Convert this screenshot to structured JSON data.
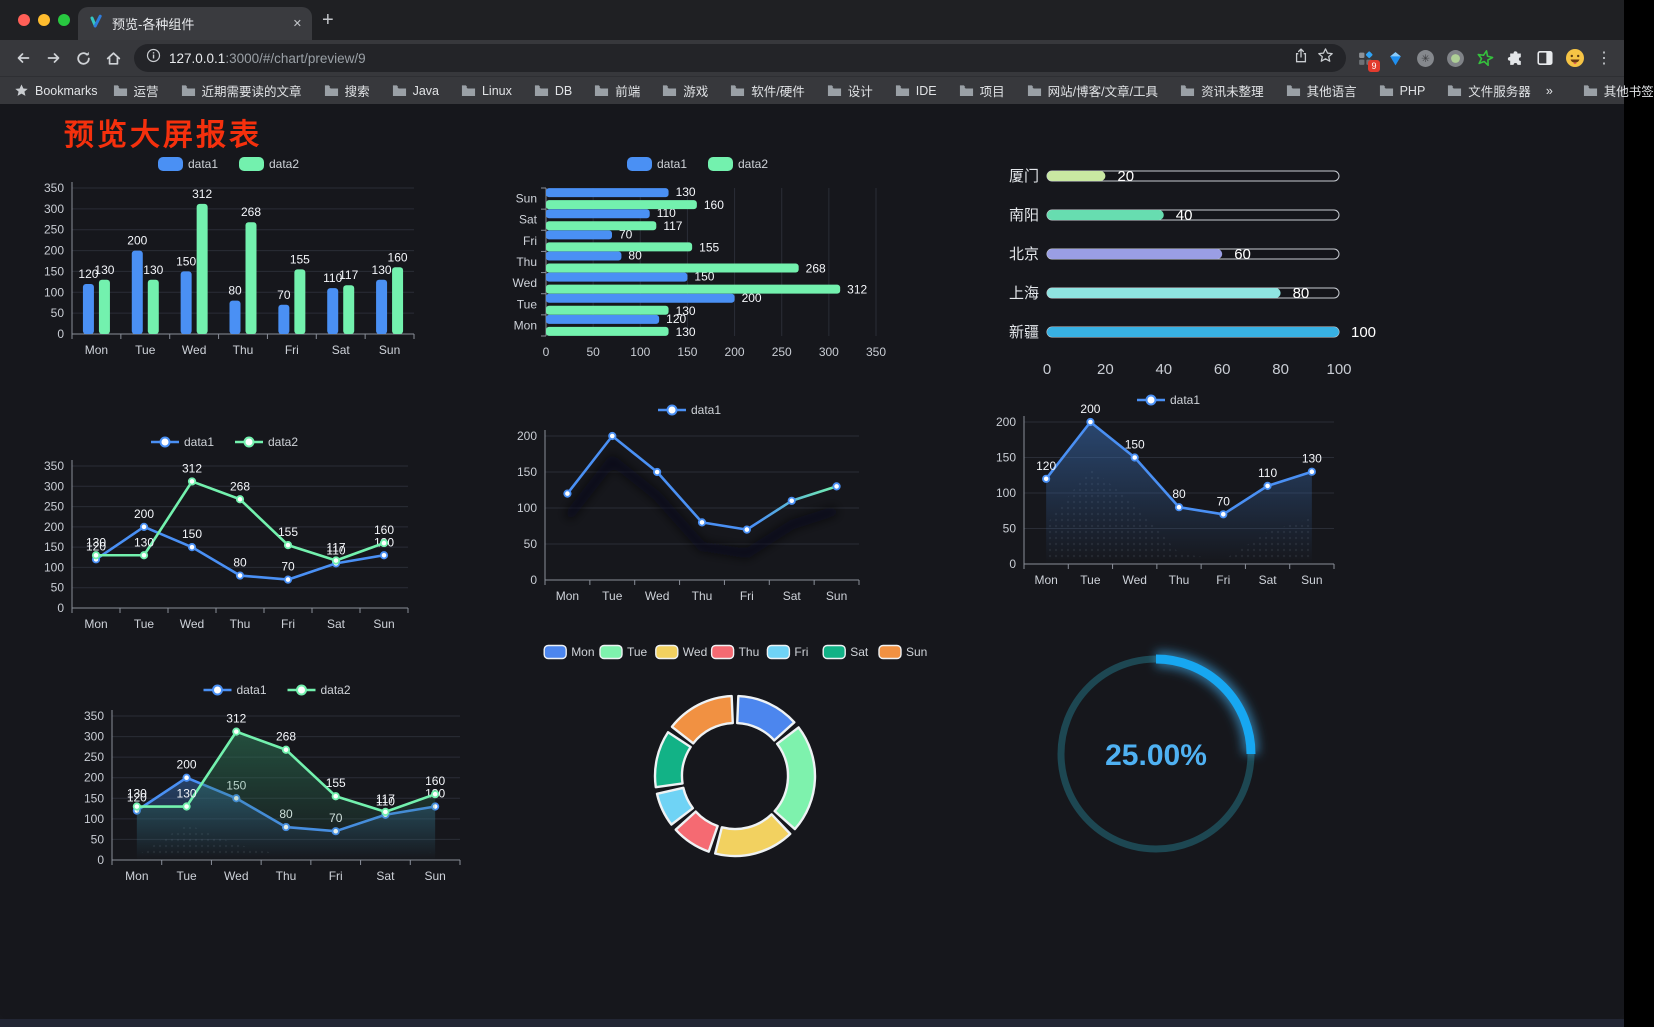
{
  "browser": {
    "tab_title": "预览-各种组件",
    "url_host": "127.0.0.1",
    "url_rest": ":3000/#/chart/preview/9",
    "bookmarks_label": "Bookmarks",
    "bookmarks": [
      "运营",
      "近期需要读的文章",
      "搜索",
      "Java",
      "Linux",
      "DB",
      "前端",
      "游戏",
      "软件/硬件",
      "设计",
      "IDE",
      "项目",
      "网站/博客/文章/工具",
      "资讯未整理",
      "其他语言",
      "PHP",
      "文件服务器"
    ],
    "bookmarks_overflow": "»",
    "other_bookmarks": "其他书签",
    "extension_badge": "9"
  },
  "page": {
    "title": "预览大屏报表",
    "title_color": "#f5300d"
  },
  "chart_data": [
    {
      "id": "c1",
      "type": "bar",
      "categories": [
        "Mon",
        "Tue",
        "Wed",
        "Thu",
        "Fri",
        "Sat",
        "Sun"
      ],
      "series": [
        {
          "name": "data1",
          "color": "#4a90f4",
          "values": [
            120,
            200,
            150,
            80,
            70,
            110,
            130
          ]
        },
        {
          "name": "data2",
          "color": "#73f1ae",
          "values": [
            130,
            130,
            312,
            268,
            155,
            117,
            160
          ]
        }
      ],
      "ylim": [
        0,
        350
      ],
      "yticks": [
        0,
        50,
        100,
        150,
        200,
        250,
        300,
        350
      ],
      "grid": true,
      "legend_position": "top"
    },
    {
      "id": "c2",
      "type": "bar-horizontal",
      "categories": [
        "Mon",
        "Tue",
        "Wed",
        "Thu",
        "Fri",
        "Sat",
        "Sun"
      ],
      "series": [
        {
          "name": "data1",
          "color": "#4a90f4",
          "values": [
            120,
            200,
            150,
            80,
            70,
            110,
            130
          ]
        },
        {
          "name": "data2",
          "color": "#73f1ae",
          "values": [
            130,
            130,
            312,
            268,
            155,
            117,
            160
          ]
        }
      ],
      "xlim": [
        0,
        350
      ],
      "xticks": [
        0,
        50,
        100,
        150,
        200,
        250,
        300,
        350
      ],
      "grid": true,
      "legend_position": "top"
    },
    {
      "id": "c3",
      "type": "progress-bars",
      "items": [
        {
          "label": "厦门",
          "value": 20,
          "color": "#c9e8a2"
        },
        {
          "label": "南阳",
          "value": 40,
          "color": "#67ddb0"
        },
        {
          "label": "北京",
          "value": 60,
          "color": "#9a9ee4"
        },
        {
          "label": "上海",
          "value": 80,
          "color": "#8fe4e1"
        },
        {
          "label": "新疆",
          "value": 100,
          "color": "#38b1e3"
        }
      ],
      "xlim": [
        0,
        100
      ],
      "xticks": [
        0,
        20,
        40,
        60,
        80,
        100
      ]
    },
    {
      "id": "c4",
      "type": "line",
      "categories": [
        "Mon",
        "Tue",
        "Wed",
        "Thu",
        "Fri",
        "Sat",
        "Sun"
      ],
      "series": [
        {
          "name": "data1",
          "color": "#4a90f4",
          "values": [
            120,
            200,
            150,
            80,
            70,
            110,
            130
          ]
        },
        {
          "name": "data2",
          "color": "#73f1ae",
          "values": [
            130,
            130,
            312,
            268,
            155,
            117,
            160
          ]
        }
      ],
      "ylim": [
        0,
        350
      ],
      "yticks": [
        0,
        50,
        100,
        150,
        200,
        250,
        300,
        350
      ],
      "labels": true,
      "grid": true,
      "legend_position": "top"
    },
    {
      "id": "c5",
      "type": "line",
      "categories": [
        "Mon",
        "Tue",
        "Wed",
        "Thu",
        "Fri",
        "Sat",
        "Sun"
      ],
      "series": [
        {
          "name": "data1",
          "color": "#4a90f4",
          "values": [
            120,
            200,
            150,
            80,
            70,
            110,
            130
          ]
        }
      ],
      "ylim": [
        0,
        200
      ],
      "yticks": [
        0,
        50,
        100,
        150,
        200
      ],
      "labels": false,
      "grid": true,
      "gradient_line": [
        "#4a90f4",
        "#73f1ae"
      ],
      "shadow": true,
      "legend_position": "top"
    },
    {
      "id": "c6",
      "type": "line",
      "categories": [
        "Mon",
        "Tue",
        "Wed",
        "Thu",
        "Fri",
        "Sat",
        "Sun"
      ],
      "series": [
        {
          "name": "data1",
          "color": "#4a90f4",
          "values": [
            120,
            200,
            150,
            80,
            70,
            110,
            130
          ],
          "area": "#3a6eb4"
        }
      ],
      "ylim": [
        0,
        200
      ],
      "yticks": [
        0,
        50,
        100,
        150,
        200
      ],
      "labels": true,
      "grid": true,
      "decal": true,
      "legend_position": "top"
    },
    {
      "id": "c7",
      "type": "line",
      "categories": [
        "Mon",
        "Tue",
        "Wed",
        "Thu",
        "Fri",
        "Sat",
        "Sun"
      ],
      "series": [
        {
          "name": "data1",
          "color": "#4a90f4",
          "values": [
            120,
            200,
            150,
            80,
            70,
            110,
            130
          ],
          "area": "#3567a8"
        },
        {
          "name": "data2",
          "color": "#73f1ae",
          "values": [
            130,
            130,
            312,
            268,
            155,
            117,
            160
          ],
          "area": "#2f7d5a"
        }
      ],
      "ylim": [
        0,
        350
      ],
      "yticks": [
        0,
        50,
        100,
        150,
        200,
        250,
        300,
        350
      ],
      "labels": true,
      "grid": true,
      "decal": true,
      "legend_position": "top"
    },
    {
      "id": "c8",
      "type": "pie",
      "categories": [
        "Mon",
        "Tue",
        "Wed",
        "Thu",
        "Fri",
        "Sat",
        "Sun"
      ],
      "values": [
        120,
        200,
        150,
        80,
        70,
        110,
        130
      ],
      "colors": [
        "#4c86ee",
        "#7ef2ad",
        "#f2d160",
        "#f56a72",
        "#6fd3f5",
        "#12b286",
        "#f19142"
      ],
      "legend_position": "top",
      "donut": true
    },
    {
      "id": "c9",
      "type": "gauge",
      "percent": 25,
      "value_label": "25.00%",
      "arc_color": "#17a7f1",
      "track_color": "#1d4752",
      "text_color": "#4fb1f2"
    }
  ]
}
